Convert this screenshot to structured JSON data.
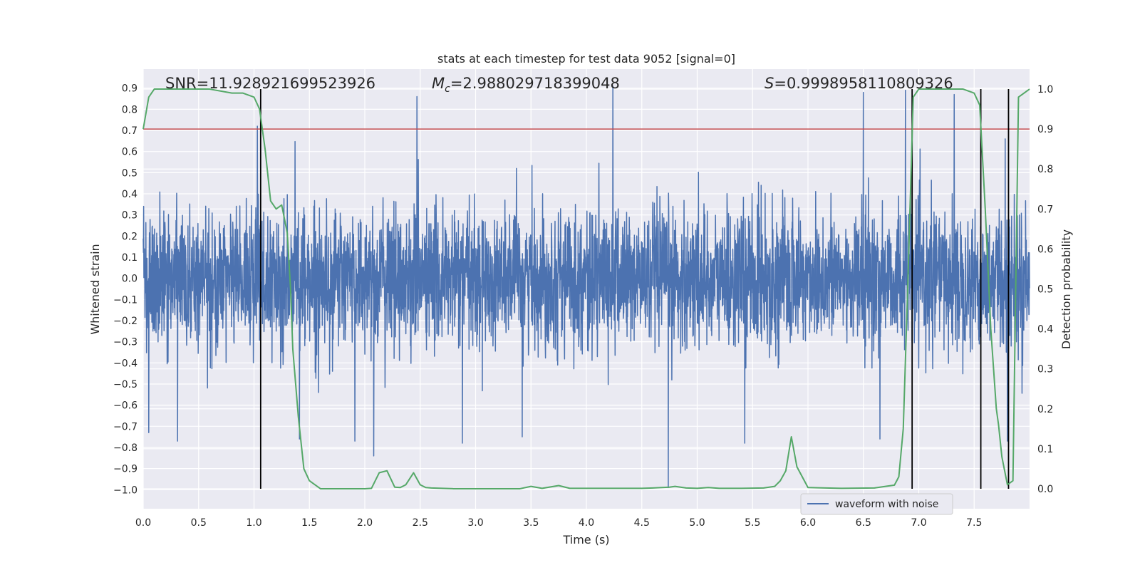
{
  "chart_data": {
    "type": "line",
    "title": "stats at each timestep for test data 9052 [signal=0]",
    "xlabel": "Time (s)",
    "ylabel": "Whitened strain",
    "y2label": "Detection probability",
    "xlim": [
      0.0,
      8.0
    ],
    "ylim": [
      -1.09,
      0.99
    ],
    "y2lim": [
      -0.05,
      1.05
    ],
    "xticks": [
      "0.0",
      "0.5",
      "1.0",
      "1.5",
      "2.0",
      "2.5",
      "3.0",
      "3.5",
      "4.0",
      "4.5",
      "5.0",
      "5.5",
      "6.0",
      "6.5",
      "7.0",
      "7.5"
    ],
    "yticks": [
      "0.9",
      "0.8",
      "0.7",
      "0.6",
      "0.5",
      "0.4",
      "0.3",
      "0.2",
      "0.1",
      "0.0",
      "−0.1",
      "−0.2",
      "−0.3",
      "−0.4",
      "−0.5",
      "−0.6",
      "−0.7",
      "−0.8",
      "−0.9",
      "−1.0"
    ],
    "y2ticks": [
      "1.0",
      "0.9",
      "0.8",
      "0.7",
      "0.6",
      "0.5",
      "0.4",
      "0.3",
      "0.2",
      "0.1",
      "0.0"
    ],
    "grid": true,
    "legend_position": "lower-right",
    "annotations": {
      "snr": "SNR=11.928921699523926",
      "mc_symbol": "M",
      "mc_sub": "c",
      "mc_value": "=2.988029718399048",
      "s_symbol": "S",
      "s_value": "=0.9998958110809326"
    },
    "series": [
      {
        "name": "waveform with noise",
        "axis": "left",
        "color": "#4c72b0",
        "kind": "noise-waveform",
        "sigma": 0.16,
        "x_start": 0.0,
        "x_end": 8.0,
        "peaks": [
          {
            "x": 0.05,
            "y": -0.73
          },
          {
            "x": 0.31,
            "y": -0.77
          },
          {
            "x": 1.03,
            "y": 0.72
          },
          {
            "x": 1.41,
            "y": -0.76
          },
          {
            "x": 1.91,
            "y": -0.77
          },
          {
            "x": 2.08,
            "y": -0.84
          },
          {
            "x": 2.47,
            "y": 0.86
          },
          {
            "x": 2.88,
            "y": -0.78
          },
          {
            "x": 3.42,
            "y": -0.75
          },
          {
            "x": 4.24,
            "y": 0.91
          },
          {
            "x": 4.74,
            "y": -0.99
          },
          {
            "x": 5.43,
            "y": -0.78
          },
          {
            "x": 6.5,
            "y": 0.88
          },
          {
            "x": 6.65,
            "y": -0.76
          },
          {
            "x": 6.88,
            "y": 0.89
          },
          {
            "x": 7.32,
            "y": 0.87
          },
          {
            "x": 7.78,
            "y": 0.66
          },
          {
            "x": 7.8,
            "y": -0.77
          }
        ]
      },
      {
        "name": "detection probability",
        "axis": "right",
        "color": "#55a868",
        "x": [
          0.0,
          0.05,
          0.1,
          0.2,
          0.4,
          0.6,
          0.8,
          0.9,
          1.0,
          1.05,
          1.1,
          1.15,
          1.2,
          1.25,
          1.3,
          1.33,
          1.35,
          1.4,
          1.45,
          1.5,
          1.55,
          1.6,
          1.7,
          1.8,
          1.9,
          2.0,
          2.06,
          2.13,
          2.2,
          2.27,
          2.32,
          2.37,
          2.44,
          2.5,
          2.55,
          2.6,
          2.8,
          3.0,
          3.2,
          3.4,
          3.5,
          3.6,
          3.75,
          3.85,
          4.0,
          4.5,
          4.6,
          4.75,
          4.8,
          4.9,
          5.0,
          5.1,
          5.2,
          5.4,
          5.6,
          5.7,
          5.75,
          5.8,
          5.85,
          5.9,
          6.0,
          6.3,
          6.6,
          6.7,
          6.78,
          6.82,
          6.86,
          6.9,
          6.95,
          7.0,
          7.1,
          7.3,
          7.4,
          7.5,
          7.55,
          7.6,
          7.65,
          7.7,
          7.72,
          7.75,
          7.8,
          7.85,
          7.9,
          7.95,
          8.0
        ],
        "values": [
          0.9,
          0.98,
          1.0,
          1.0,
          1.0,
          1.0,
          0.99,
          0.99,
          0.98,
          0.95,
          0.85,
          0.72,
          0.7,
          0.71,
          0.64,
          0.5,
          0.35,
          0.18,
          0.05,
          0.02,
          0.01,
          0.0,
          0.0,
          0.0,
          0.0,
          0.0,
          0.001,
          0.04,
          0.045,
          0.004,
          0.003,
          0.01,
          0.04,
          0.01,
          0.003,
          0.002,
          0.0,
          0.0,
          0.0,
          0.0,
          0.006,
          0.001,
          0.008,
          0.001,
          0.001,
          0.001,
          0.002,
          0.004,
          0.006,
          0.002,
          0.001,
          0.003,
          0.001,
          0.001,
          0.002,
          0.006,
          0.02,
          0.045,
          0.13,
          0.055,
          0.003,
          0.001,
          0.002,
          0.006,
          0.009,
          0.03,
          0.15,
          0.5,
          0.98,
          1.0,
          1.0,
          1.0,
          1.0,
          0.99,
          0.96,
          0.7,
          0.4,
          0.2,
          0.16,
          0.08,
          0.01,
          0.02,
          0.98,
          0.99,
          1.0
        ]
      }
    ],
    "reference_lines": {
      "threshold_y2": 0.9,
      "threshold_color": "#c44e52",
      "vlines_x": [
        1.06,
        6.94,
        7.56,
        7.81
      ],
      "vline_color": "#000000"
    }
  }
}
